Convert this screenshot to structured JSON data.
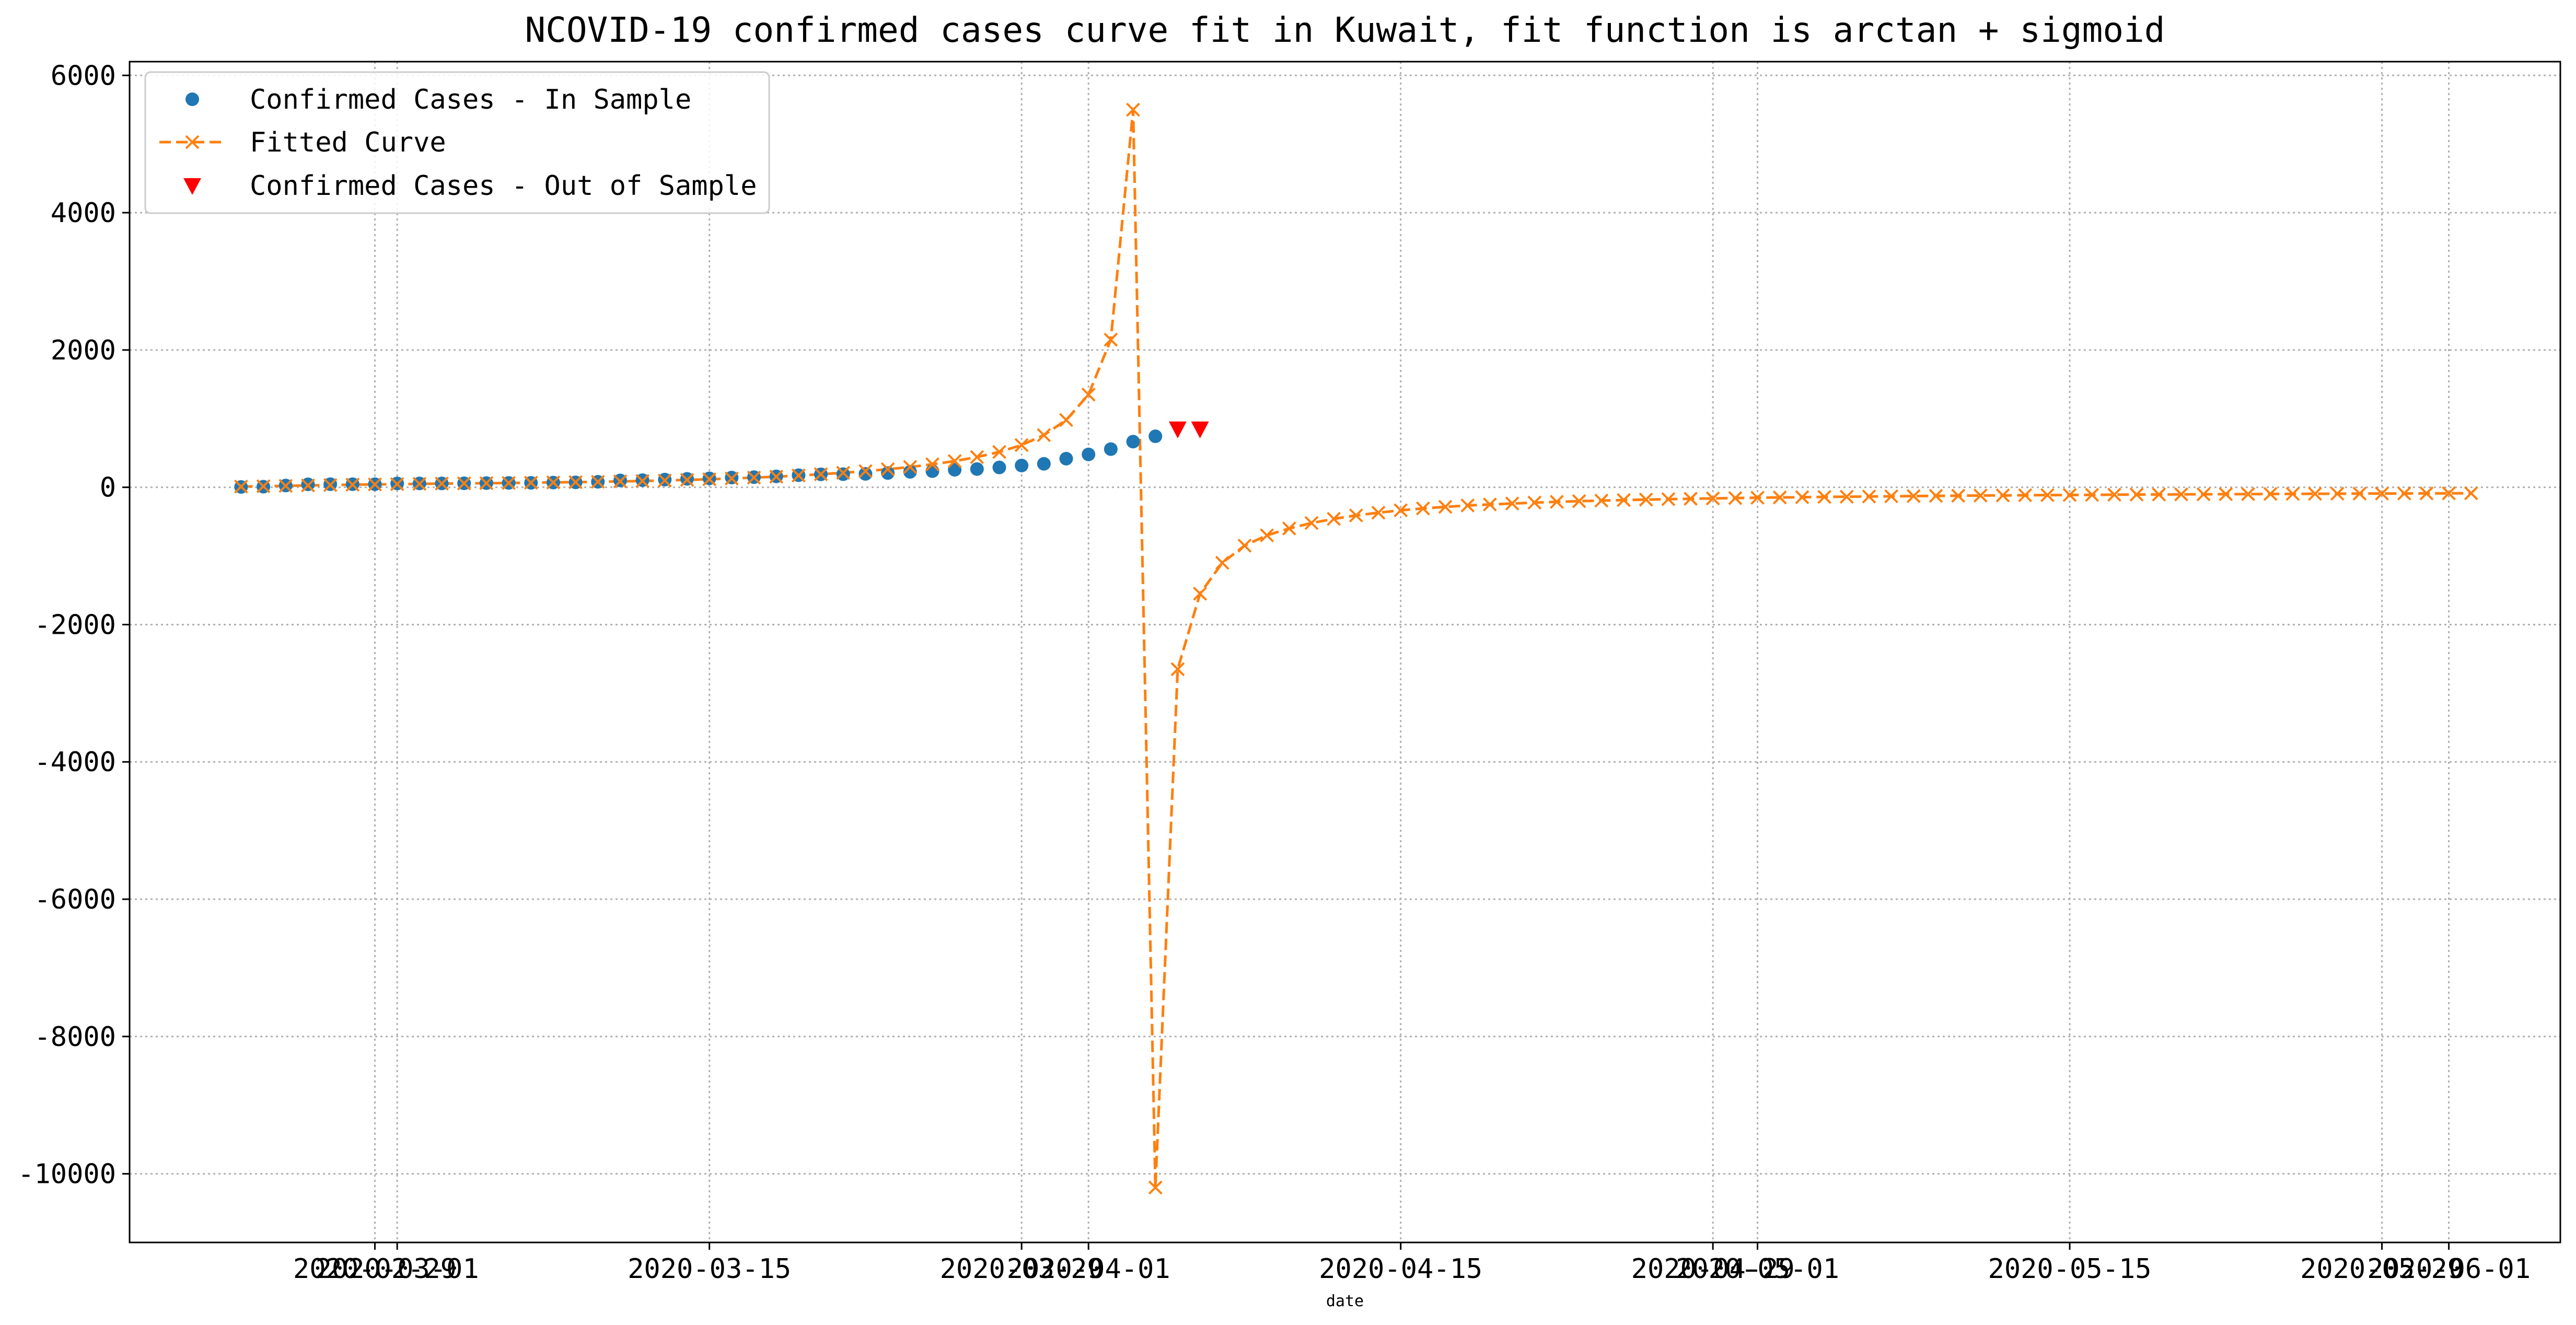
{
  "chart_data": {
    "type": "line",
    "title": "NCOVID-19 confirmed cases curve fit in Kuwait, fit function is arctan + sigmoid",
    "xlabel": "date",
    "ylabel": "",
    "ylim": [
      -11000,
      6200
    ],
    "yticks": [
      -10000,
      -8000,
      -6000,
      -4000,
      -2000,
      0,
      2000,
      4000,
      6000
    ],
    "ytick_labels": [
      "-10000",
      "-8000",
      "-6000",
      "-4000",
      "-2000",
      "0",
      "2000",
      "4000",
      "6000"
    ],
    "xlim": [
      "2020-02-18",
      "2020-06-06"
    ],
    "xticks": [
      {
        "date": "2020-02-29",
        "label": "2020-02-29"
      },
      {
        "date": "2020-03-01",
        "label": "2020-03-01"
      },
      {
        "date": "2020-03-15",
        "label": "2020-03-15"
      },
      {
        "date": "2020-03-29",
        "label": "2020-03-29"
      },
      {
        "date": "2020-04-01",
        "label": "2020-04-01"
      },
      {
        "date": "2020-04-15",
        "label": "2020-04-15"
      },
      {
        "date": "2020-04-29",
        "label": "2020-04-29"
      },
      {
        "date": "2020-05-01",
        "label": "2020-05-01"
      },
      {
        "date": "2020-05-15",
        "label": "2020-05-15"
      },
      {
        "date": "2020-05-29",
        "label": "2020-05-29"
      },
      {
        "date": "2020-06-01",
        "label": "2020-06-01"
      }
    ],
    "grid": true,
    "legend_position": "top-left",
    "series": [
      {
        "name": "Confirmed Cases - In Sample",
        "style": "markers",
        "marker": "circle",
        "color": "#1f77b4",
        "x_start": "2020-02-23",
        "values": [
          5,
          9,
          26,
          43,
          45,
          45,
          45,
          56,
          56,
          56,
          58,
          61,
          64,
          65,
          69,
          72,
          80,
          100,
          104,
          112,
          123,
          130,
          142,
          148,
          159,
          176,
          189,
          191,
          195,
          208,
          225,
          235,
          255,
          266,
          289,
          317,
          342,
          417,
          479,
          556,
          665,
          743
        ]
      },
      {
        "name": "Fitted Curve",
        "style": "dashed-line-x",
        "color": "#ff7f0e",
        "x_start": "2020-02-23",
        "values": [
          10,
          15,
          21,
          27,
          33,
          38,
          42,
          46,
          50,
          54,
          57,
          60,
          63,
          67,
          71,
          75,
          80,
          86,
          92,
          99,
          108,
          117,
          128,
          141,
          155,
          172,
          190,
          211,
          235,
          263,
          296,
          335,
          382,
          440,
          515,
          615,
          760,
          980,
          1350,
          2150,
          5500,
          -10200,
          -2650,
          -1550,
          -1100,
          -850,
          -700,
          -600,
          -520,
          -460,
          -410,
          -370,
          -335,
          -308,
          -285,
          -265,
          -250,
          -236,
          -223,
          -212,
          -202,
          -194,
          -186,
          -179,
          -173,
          -167,
          -162,
          -157,
          -152,
          -148,
          -144,
          -140,
          -137,
          -134,
          -131,
          -128,
          -125,
          -123,
          -120,
          -118,
          -116,
          -114,
          -112,
          -110,
          -108,
          -106,
          -105,
          -103,
          -102,
          -100,
          -99,
          -97,
          -96,
          -95,
          -93,
          -92,
          -91,
          -90,
          -89,
          -88,
          -87
        ]
      },
      {
        "name": "Confirmed Cases - Out of Sample",
        "style": "markers",
        "marker": "triangle-down",
        "color": "#ff0000",
        "x_start": "2020-04-05",
        "values": [
          855,
          855
        ]
      }
    ]
  }
}
